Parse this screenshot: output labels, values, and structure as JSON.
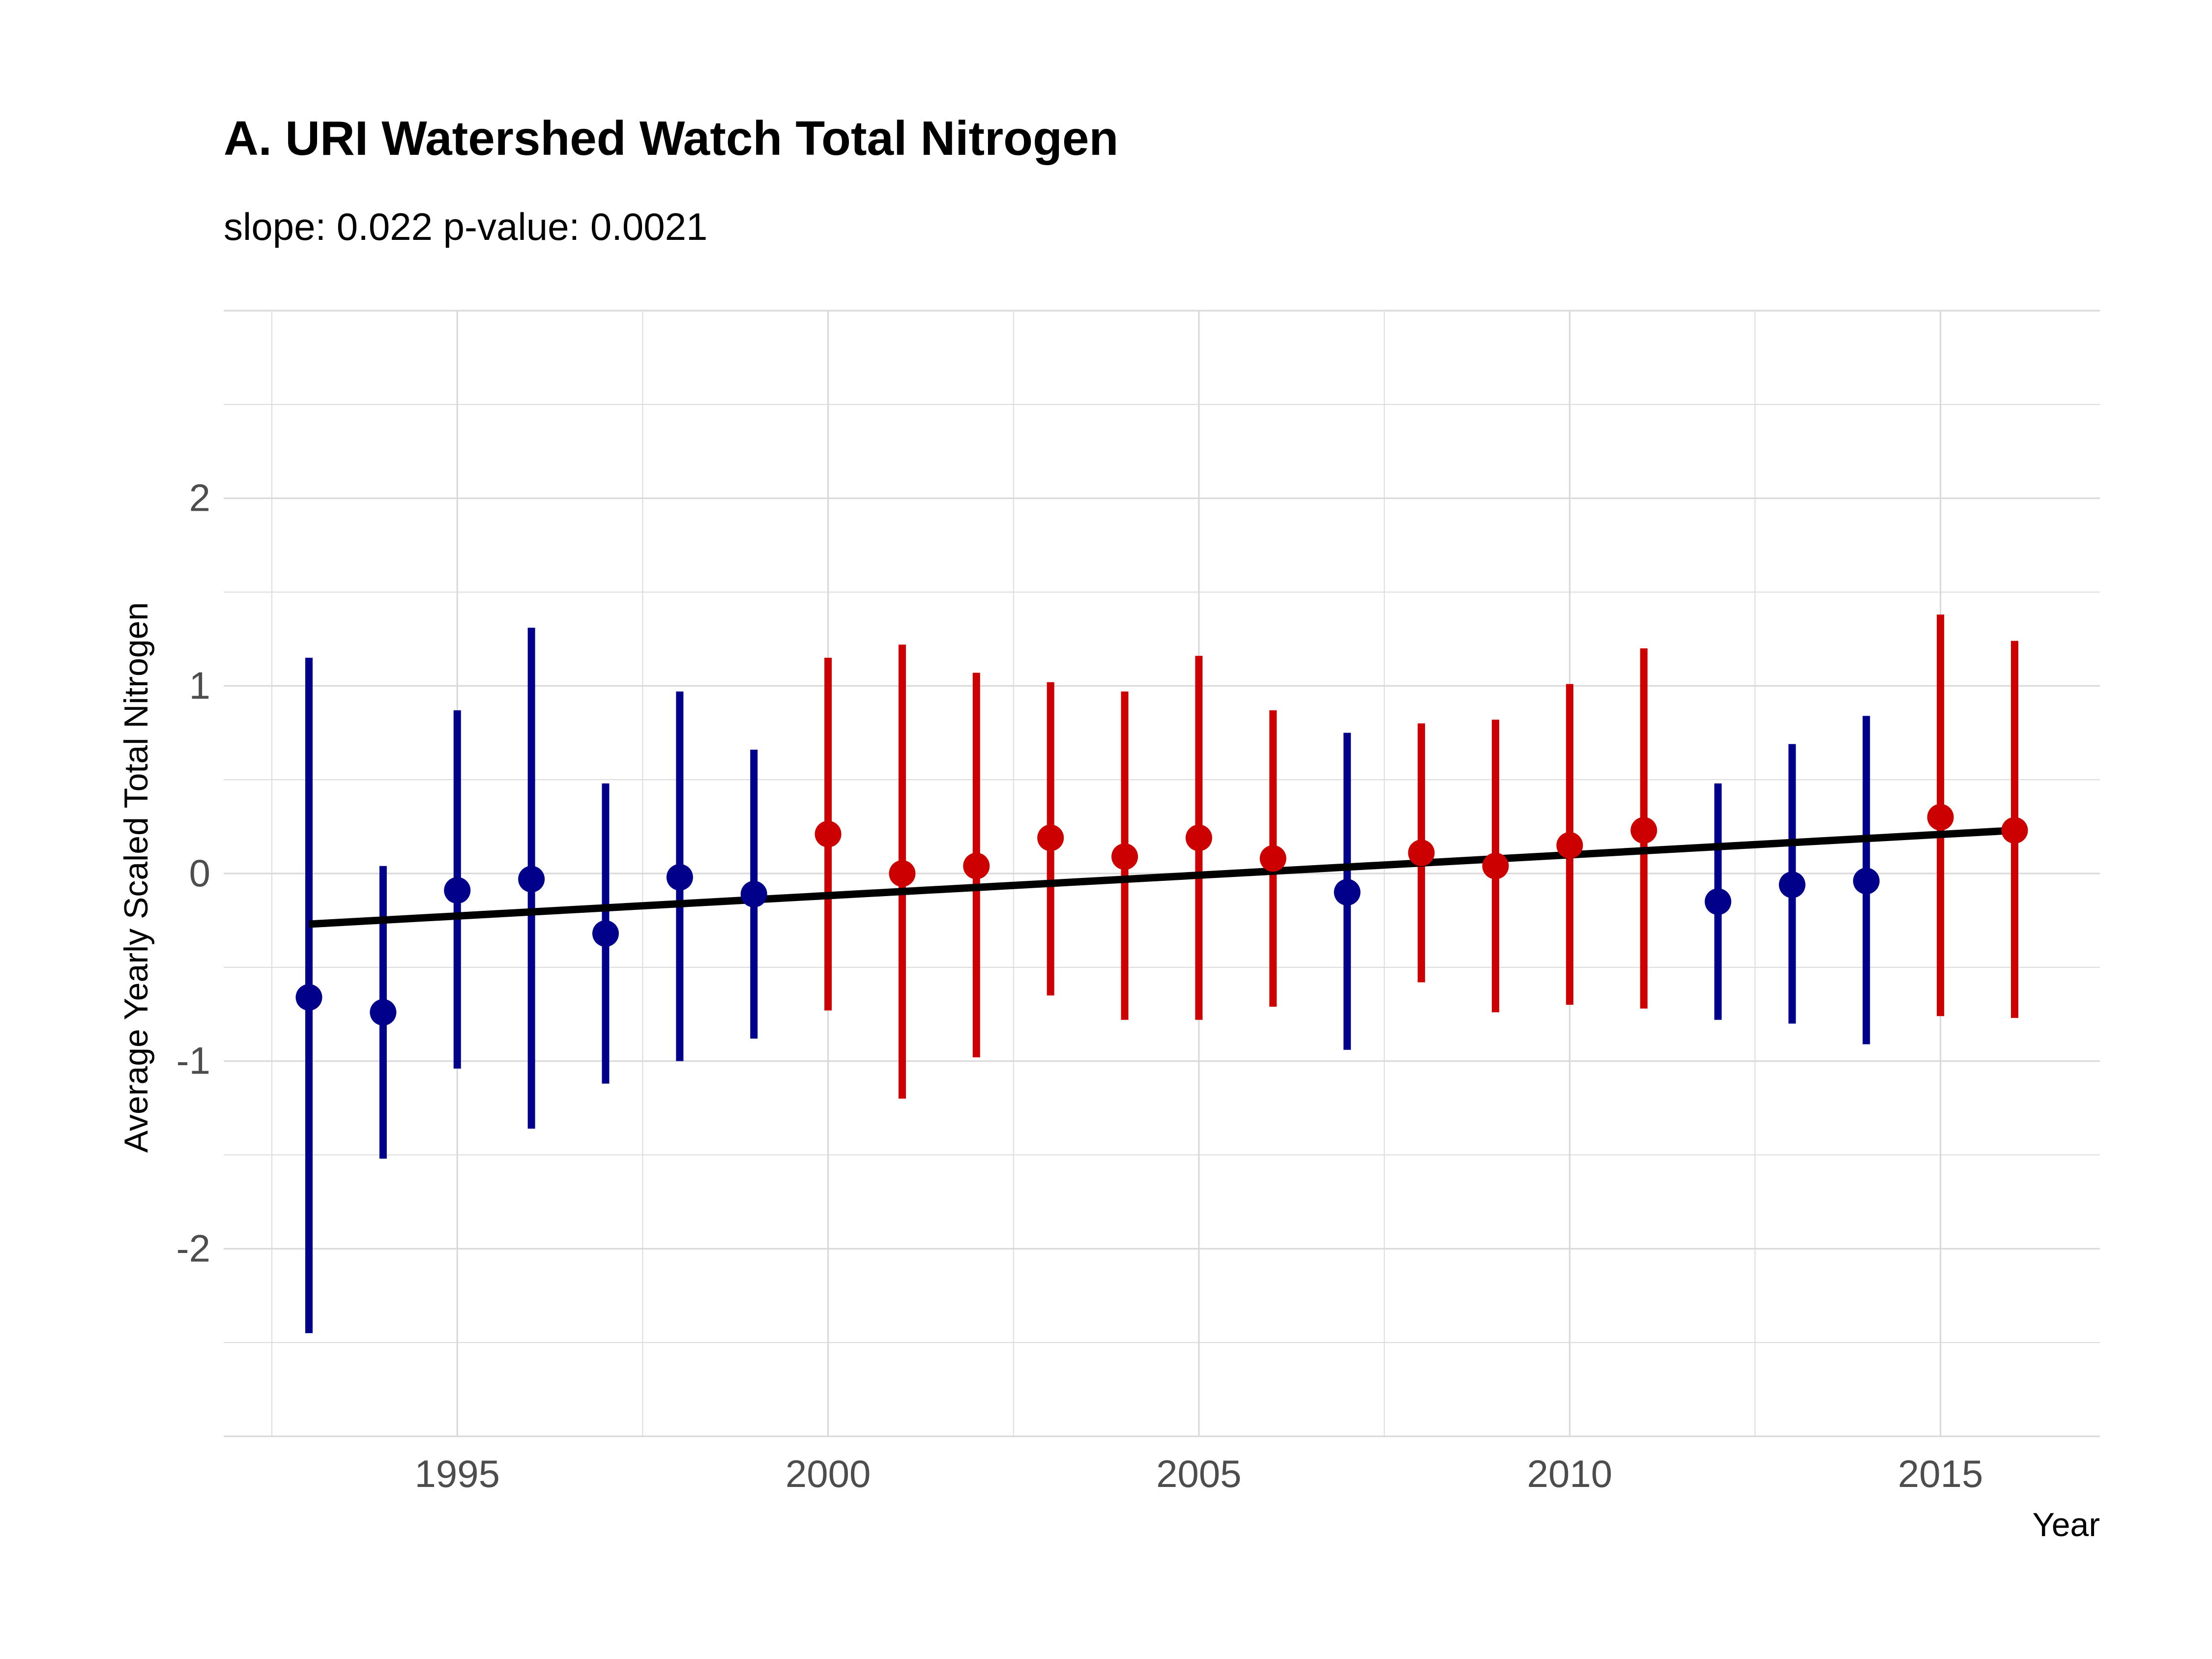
{
  "chart_data": {
    "type": "scatter",
    "title": "A. URI Watershed Watch Total Nitrogen",
    "subtitle": "slope: 0.022 p-value: 0.0021",
    "xlabel": "Year",
    "ylabel": "Average Yearly Scaled Total Nitrogen",
    "xlim": [
      1991.85,
      2017.15
    ],
    "ylim": [
      -3,
      3
    ],
    "x_ticks": [
      1995,
      2000,
      2005,
      2010,
      2015
    ],
    "y_ticks": [
      -2,
      -1,
      0,
      1,
      2
    ],
    "x_tick_labels": [
      "1995",
      "2000",
      "2005",
      "2010",
      "2015"
    ],
    "y_tick_labels": [
      "-2",
      "-1",
      "0",
      "1",
      "2"
    ],
    "grid": true,
    "colors": {
      "below": "#00008B",
      "above": "#CC0000",
      "trend": "#000000",
      "grid": "#D9D9D9"
    },
    "points": [
      {
        "year": 1993,
        "mean": -0.66,
        "lower": -2.45,
        "upper": 1.15,
        "group": "below"
      },
      {
        "year": 1994,
        "mean": -0.74,
        "lower": -1.52,
        "upper": 0.04,
        "group": "below"
      },
      {
        "year": 1995,
        "mean": -0.09,
        "lower": -1.04,
        "upper": 0.87,
        "group": "below"
      },
      {
        "year": 1996,
        "mean": -0.03,
        "lower": -1.36,
        "upper": 1.31,
        "group": "below"
      },
      {
        "year": 1997,
        "mean": -0.32,
        "lower": -1.12,
        "upper": 0.48,
        "group": "below"
      },
      {
        "year": 1998,
        "mean": -0.02,
        "lower": -1.0,
        "upper": 0.97,
        "group": "below"
      },
      {
        "year": 1999,
        "mean": -0.11,
        "lower": -0.88,
        "upper": 0.66,
        "group": "below"
      },
      {
        "year": 2000,
        "mean": 0.21,
        "lower": -0.73,
        "upper": 1.15,
        "group": "above"
      },
      {
        "year": 2001,
        "mean": 0.0,
        "lower": -1.2,
        "upper": 1.22,
        "group": "above"
      },
      {
        "year": 2002,
        "mean": 0.04,
        "lower": -0.98,
        "upper": 1.07,
        "group": "above"
      },
      {
        "year": 2003,
        "mean": 0.19,
        "lower": -0.65,
        "upper": 1.02,
        "group": "above"
      },
      {
        "year": 2004,
        "mean": 0.09,
        "lower": -0.78,
        "upper": 0.97,
        "group": "above"
      },
      {
        "year": 2005,
        "mean": 0.19,
        "lower": -0.78,
        "upper": 1.16,
        "group": "above"
      },
      {
        "year": 2006,
        "mean": 0.08,
        "lower": -0.71,
        "upper": 0.87,
        "group": "above"
      },
      {
        "year": 2007,
        "mean": -0.1,
        "lower": -0.94,
        "upper": 0.75,
        "group": "below"
      },
      {
        "year": 2008,
        "mean": 0.11,
        "lower": -0.58,
        "upper": 0.8,
        "group": "above"
      },
      {
        "year": 2009,
        "mean": 0.04,
        "lower": -0.74,
        "upper": 0.82,
        "group": "above"
      },
      {
        "year": 2010,
        "mean": 0.15,
        "lower": -0.7,
        "upper": 1.01,
        "group": "above"
      },
      {
        "year": 2011,
        "mean": 0.23,
        "lower": -0.72,
        "upper": 1.2,
        "group": "above"
      },
      {
        "year": 2012,
        "mean": -0.15,
        "lower": -0.78,
        "upper": 0.48,
        "group": "below"
      },
      {
        "year": 2013,
        "mean": -0.06,
        "lower": -0.8,
        "upper": 0.69,
        "group": "below"
      },
      {
        "year": 2014,
        "mean": -0.04,
        "lower": -0.91,
        "upper": 0.84,
        "group": "below"
      },
      {
        "year": 2015,
        "mean": 0.3,
        "lower": -0.76,
        "upper": 1.38,
        "group": "above"
      },
      {
        "year": 2016,
        "mean": 0.23,
        "lower": -0.77,
        "upper": 1.24,
        "group": "above"
      }
    ],
    "trend_line": {
      "type": "linear",
      "x": [
        1993,
        2016
      ],
      "y": [
        -0.27,
        0.23
      ]
    }
  }
}
